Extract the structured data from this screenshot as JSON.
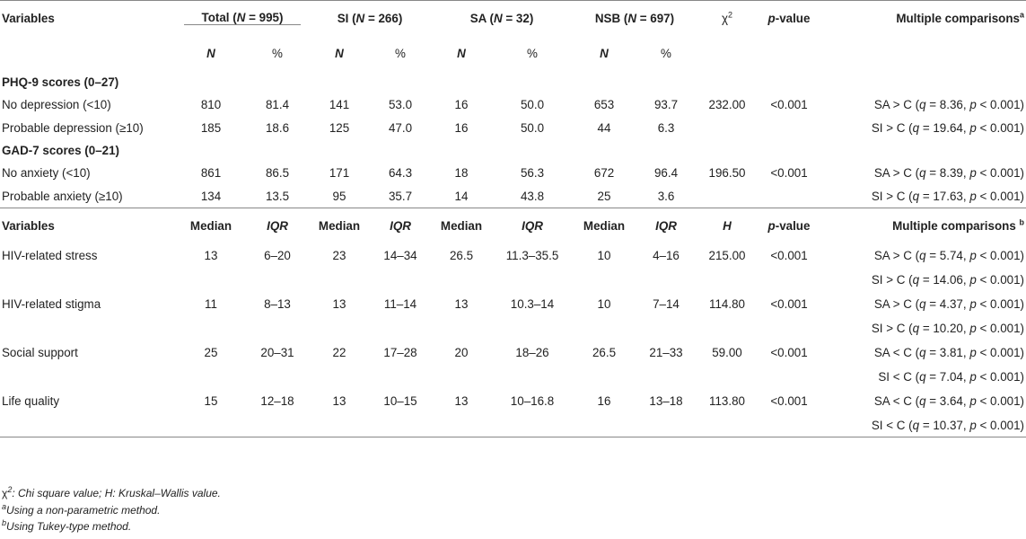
{
  "header1": {
    "variables": "Variables",
    "groups": [
      {
        "label": "Total",
        "n_label": "N",
        "n_value": " = 995"
      },
      {
        "label": "SI",
        "n_label": "N",
        "n_value": " = 266"
      },
      {
        "label": "SA",
        "n_label": "N",
        "n_value": " = 32"
      },
      {
        "label": "NSB",
        "n_label": "N",
        "n_value": " = 697"
      }
    ],
    "chi": "χ",
    "chi_sup": "2",
    "p_label": "p",
    "p_suffix": "-value",
    "mc_label": "Multiple comparisons",
    "mc_sup": "a"
  },
  "header2": {
    "n": "N",
    "pct": "%"
  },
  "sections": [
    {
      "title": "PHQ-9 scores (0–27)",
      "rows": [
        {
          "label": "No depression (<10)",
          "vals": [
            "810",
            "81.4",
            "141",
            "53.0",
            "16",
            "50.0",
            "653",
            "93.7"
          ],
          "stat": "232.00",
          "p": "<0.001",
          "mc": {
            "pre": "SA > C (",
            "q": "q",
            "qv": " = 8.36, ",
            "p": "p",
            "pv": " < 0.001)"
          }
        },
        {
          "label": "Probable depression (≥10)",
          "vals": [
            "185",
            "18.6",
            "125",
            "47.0",
            "16",
            "50.0",
            "44",
            "6.3"
          ],
          "stat": "",
          "p": "",
          "mc": {
            "pre": "SI > C (",
            "q": "q",
            "qv": " = 19.64, ",
            "p": "p",
            "pv": " < 0.001)"
          }
        }
      ]
    },
    {
      "title": "GAD-7 scores (0–21)",
      "rows": [
        {
          "label": "No anxiety (<10)",
          "vals": [
            "861",
            "86.5",
            "171",
            "64.3",
            "18",
            "56.3",
            "672",
            "96.4"
          ],
          "stat": "196.50",
          "p": "<0.001",
          "mc": {
            "pre": "SA > C (",
            "q": "q",
            "qv": " = 8.39, ",
            "p": "p",
            "pv": " < 0.001)"
          }
        },
        {
          "label": "Probable anxiety (≥10)",
          "vals": [
            "134",
            "13.5",
            "95",
            "35.7",
            "14",
            "43.8",
            "25",
            "3.6"
          ],
          "stat": "",
          "p": "",
          "mc": {
            "pre": "SI > C (",
            "q": "q",
            "qv": " = 17.63, ",
            "p": "p",
            "pv": " < 0.001)"
          }
        }
      ]
    }
  ],
  "header3": {
    "variables": "Variables",
    "median": "Median",
    "iqr": "IQR",
    "h": "H",
    "p_label": "p",
    "p_suffix": "-value",
    "mc_label": "Multiple comparisons ",
    "mc_sup": "b"
  },
  "continuous": [
    {
      "label": "HIV-related stress",
      "vals": [
        "13",
        "6–20",
        "23",
        "14–34",
        "26.5",
        "11.3–35.5",
        "10",
        "4–16"
      ],
      "stat": "215.00",
      "p": "<0.001",
      "mc": [
        {
          "pre": "SA > C (",
          "q": "q",
          "qv": " = 5.74, ",
          "p": "p",
          "pv": " < 0.001)"
        },
        {
          "pre": "SI > C (",
          "q": "q",
          "qv": " = 14.06, ",
          "p": "p",
          "pv": " < 0.001)"
        }
      ]
    },
    {
      "label": "HIV-related stigma",
      "vals": [
        "11",
        "8–13",
        "13",
        "11–14",
        "13",
        "10.3–14",
        "10",
        "7–14"
      ],
      "stat": "114.80",
      "p": "<0.001",
      "mc": [
        {
          "pre": "SA > C (",
          "q": "q",
          "qv": " = 4.37, ",
          "p": "p",
          "pv": " < 0.001)"
        },
        {
          "pre": "SI > C (",
          "q": "q",
          "qv": " = 10.20, ",
          "p": "p",
          "pv": " < 0.001)"
        }
      ]
    },
    {
      "label": "Social support",
      "vals": [
        "25",
        "20–31",
        "22",
        "17–28",
        "20",
        "18–26",
        "26.5",
        "21–33"
      ],
      "stat": "59.00",
      "p": "<0.001",
      "mc": [
        {
          "pre": "SA < C (",
          "q": "q",
          "qv": " = 3.81, ",
          "p": "p",
          "pv": " < 0.001)"
        },
        {
          "pre": "SI < C (",
          "q": "q",
          "qv": " = 7.04, ",
          "p": "p",
          "pv": " < 0.001)"
        }
      ]
    },
    {
      "label": "Life quality",
      "vals": [
        "15",
        "12–18",
        "13",
        "10–15",
        "13",
        "10–16.8",
        "16",
        "13–18"
      ],
      "stat": "113.80",
      "p": "<0.001",
      "mc": [
        {
          "pre": "SA < C (",
          "q": "q",
          "qv": " = 3.64, ",
          "p": "p",
          "pv": " < 0.001)"
        },
        {
          "pre": "SI < C (",
          "q": "q",
          "qv": " = 10.37, ",
          "p": "p",
          "pv": " < 0.001)"
        }
      ]
    }
  ],
  "notes": {
    "chi_sym": "χ",
    "chi_sup": "2",
    "legend_text": ": Chi square value; H: Kruskal–Wallis value.",
    "a_sup": "a",
    "a_text": "Using a non-parametric method.",
    "b_sup": "b",
    "b_text": "Using Tukey-type method."
  }
}
